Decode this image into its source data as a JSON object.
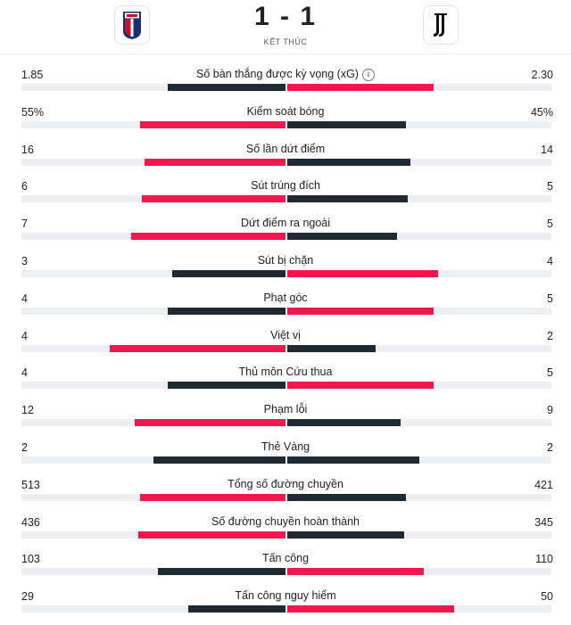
{
  "match": {
    "score": "1 - 1",
    "status": "KẾT THÚC",
    "home_logo_icon": "bologna-crest-icon",
    "away_logo_icon": "juventus-crest-icon"
  },
  "colors": {
    "leader": "#f0194f",
    "trailer": "#1f2a33",
    "track": "#eceef1"
  },
  "stats": [
    {
      "label": "Số bàn thắng được kỳ vọng (xG)",
      "home": "1.85",
      "away": "2.30",
      "info": true
    },
    {
      "label": "Kiểm soát bóng",
      "home": "55%",
      "away": "45%"
    },
    {
      "label": "Số lần dứt điểm",
      "home": "16",
      "away": "14"
    },
    {
      "label": "Sút trúng đích",
      "home": "6",
      "away": "5"
    },
    {
      "label": "Dứt điểm ra ngoài",
      "home": "7",
      "away": "5"
    },
    {
      "label": "Sút bị chặn",
      "home": "3",
      "away": "4"
    },
    {
      "label": "Phạt góc",
      "home": "4",
      "away": "5"
    },
    {
      "label": "Việt vị",
      "home": "4",
      "away": "2"
    },
    {
      "label": "Thủ môn Cứu thua",
      "home": "4",
      "away": "5"
    },
    {
      "label": "Phạm lỗi",
      "home": "12",
      "away": "9"
    },
    {
      "label": "Thẻ Vàng",
      "home": "2",
      "away": "2"
    },
    {
      "label": "Tổng số đường chuyền",
      "home": "513",
      "away": "421"
    },
    {
      "label": "Số đường chuyền hoàn thành",
      "home": "436",
      "away": "345"
    },
    {
      "label": "Tấn công",
      "home": "103",
      "away": "110"
    },
    {
      "label": "Tấn công nguy hiểm",
      "home": "29",
      "away": "50"
    }
  ]
}
